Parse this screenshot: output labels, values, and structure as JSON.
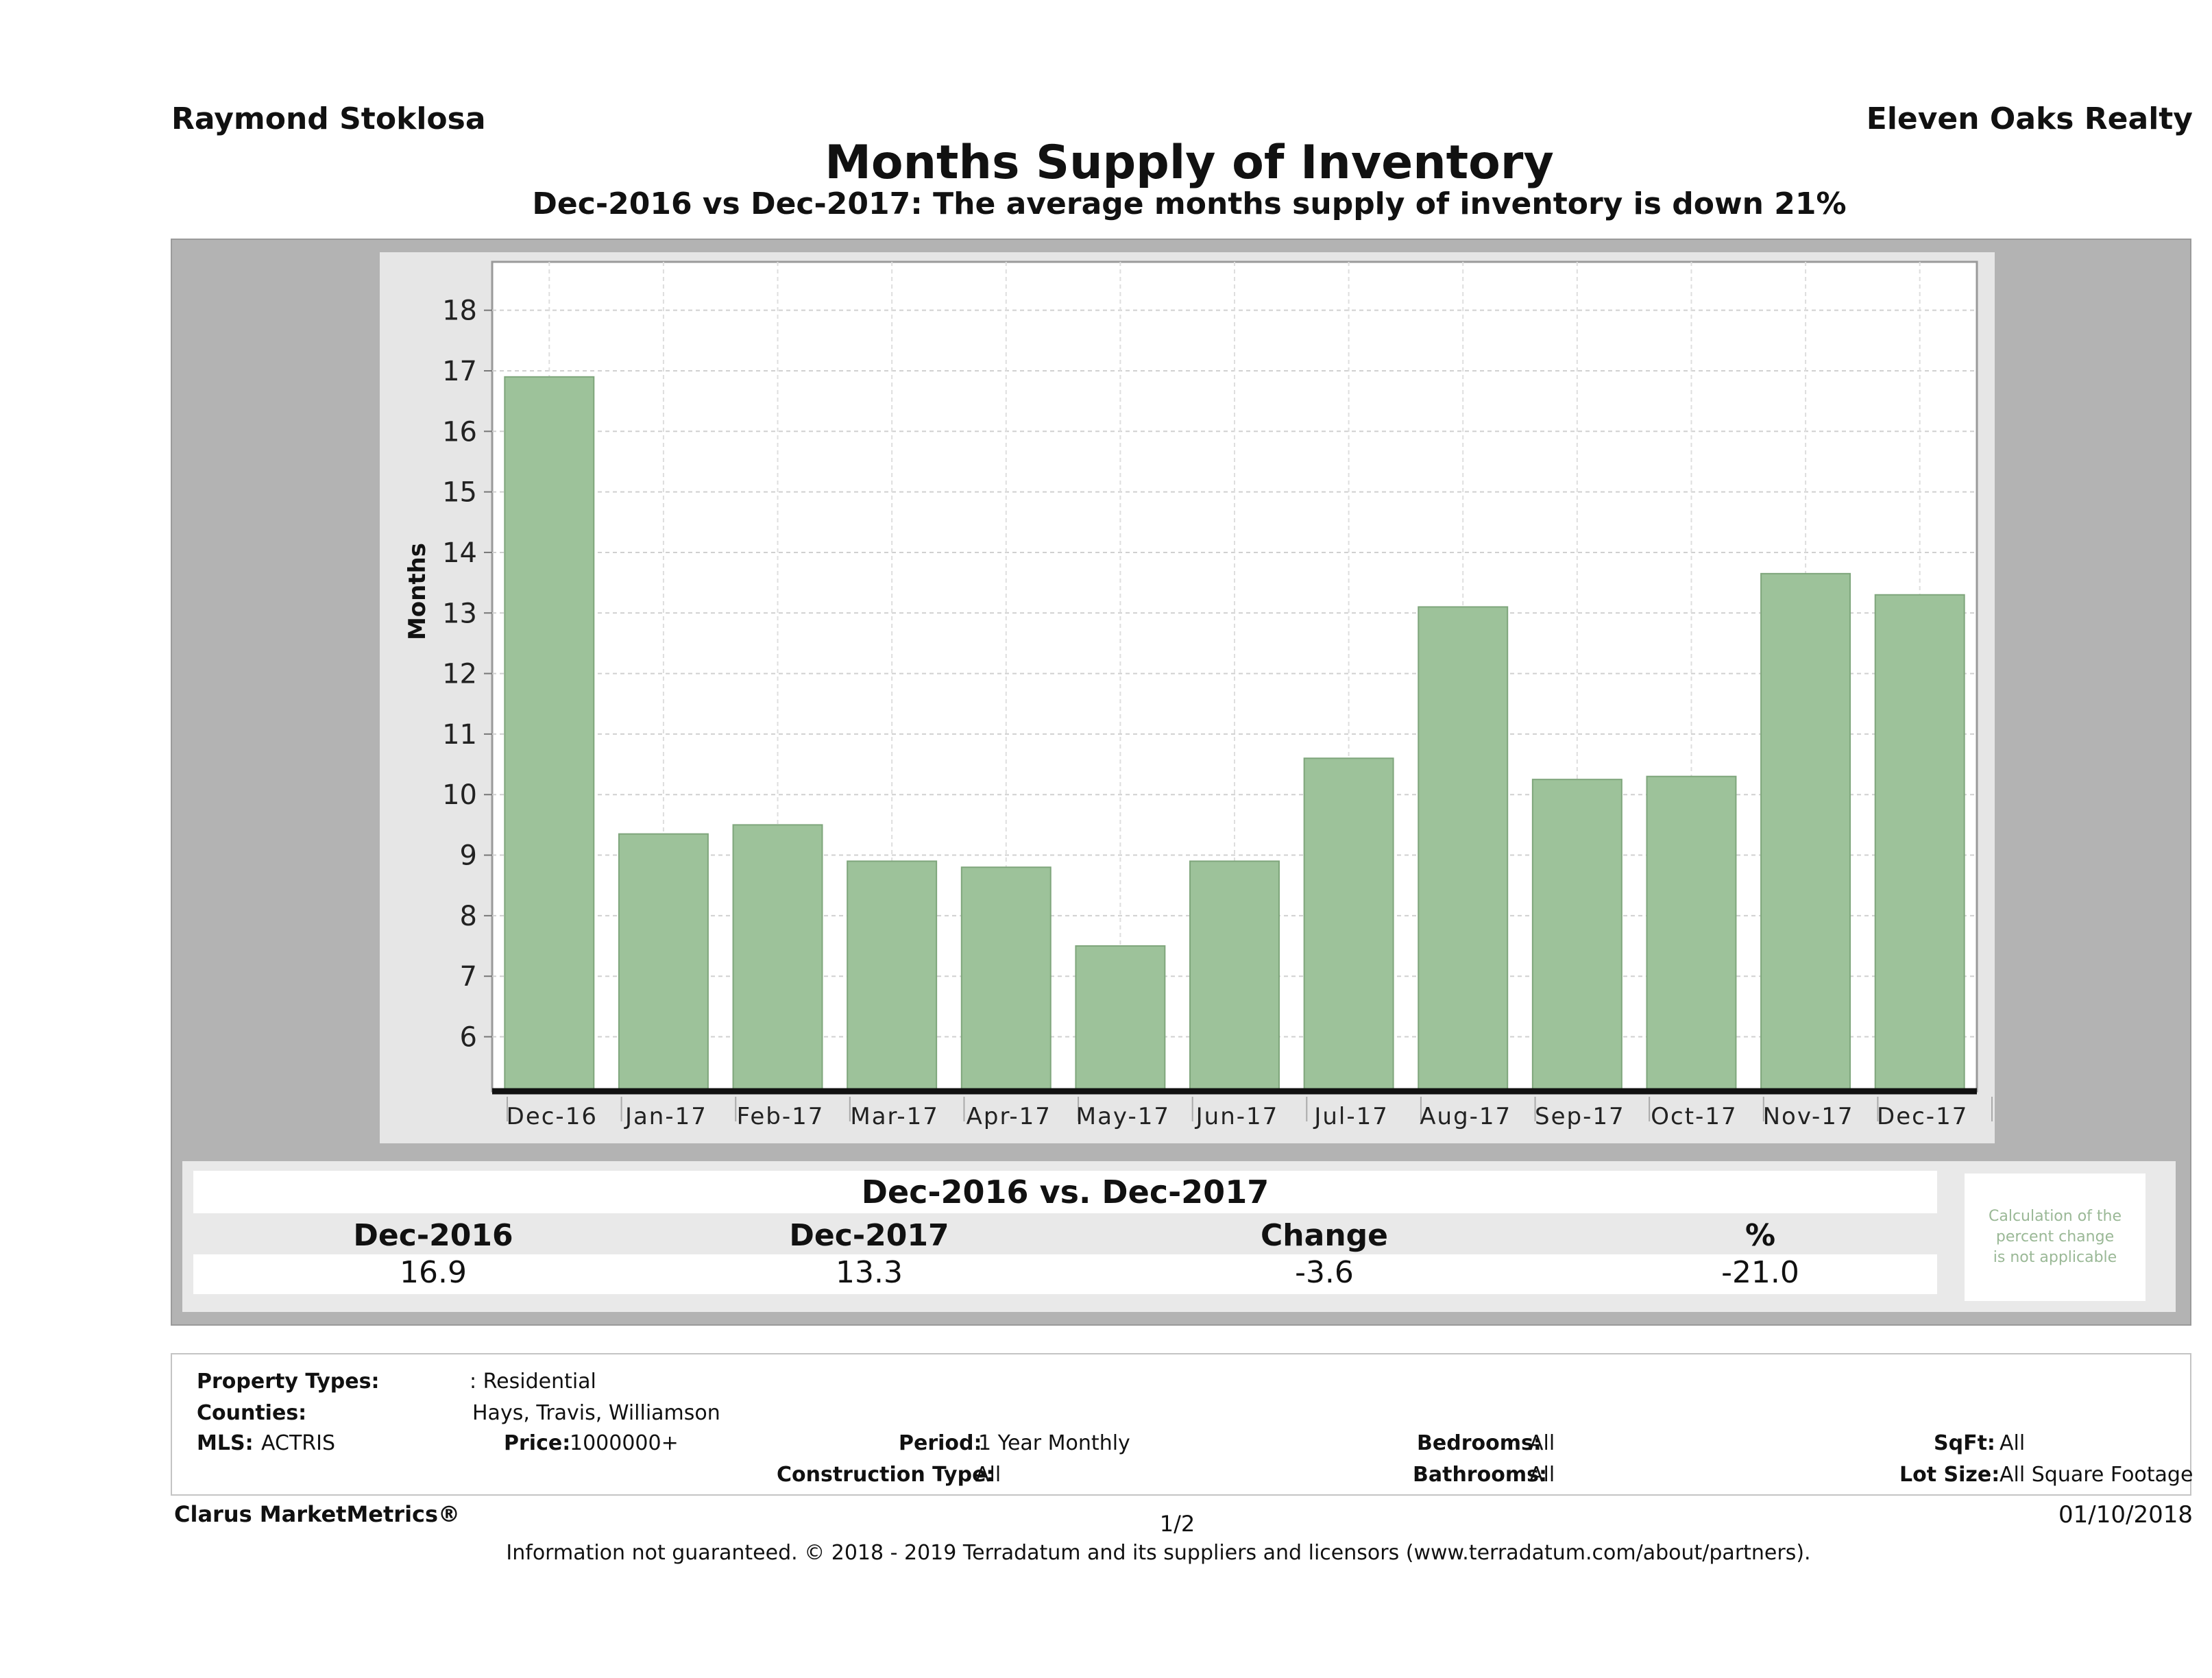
{
  "header": {
    "agent": "Raymond Stoklosa",
    "brokerage": "Eleven Oaks Realty",
    "title": "Months Supply of Inventory",
    "subtitle": "Dec-2016 vs Dec-2017: The average months supply of inventory is down 21%"
  },
  "chart_data": {
    "type": "bar",
    "categories": [
      "Dec-16",
      "Jan-17",
      "Feb-17",
      "Mar-17",
      "Apr-17",
      "May-17",
      "Jun-17",
      "Jul-17",
      "Aug-17",
      "Sep-17",
      "Oct-17",
      "Nov-17",
      "Dec-17"
    ],
    "values": [
      16.9,
      9.35,
      9.5,
      8.9,
      8.8,
      7.5,
      8.9,
      10.6,
      13.1,
      10.25,
      10.3,
      13.65,
      13.3
    ],
    "ylabel": "Months",
    "ylim": [
      5.1,
      18.8
    ],
    "yticks": [
      6,
      7,
      8,
      9,
      10,
      11,
      12,
      13,
      14,
      15,
      16,
      17,
      18
    ],
    "grid": true,
    "bar_color": "#9dc29a"
  },
  "summary": {
    "title": "Dec-2016 vs. Dec-2017",
    "headers": [
      "Dec-2016",
      "Dec-2017",
      "Change",
      "%"
    ],
    "values": [
      "16.9",
      "13.3",
      "-3.6",
      "-21.0"
    ],
    "note": [
      "Calculation of the",
      "percent change",
      "is not applicable"
    ]
  },
  "criteria": {
    "property_types_label": "Property Types:",
    "property_types_value": ": Residential",
    "counties_label": "Counties:",
    "counties_value": "Hays, Travis, Williamson",
    "mls_label": "MLS:",
    "mls_value": "ACTRIS",
    "price_label": "Price:",
    "price_value": "1000000+",
    "period_label": "Period:",
    "period_value": "1 Year Monthly",
    "construction_label": "Construction Type:",
    "construction_value": "All",
    "bedrooms_label": "Bedrooms:",
    "bedrooms_value": "All",
    "bathrooms_label": "Bathrooms:",
    "bathrooms_value": "All",
    "sqft_label": "SqFt:",
    "sqft_value": "All",
    "lotsize_label": "Lot Size:",
    "lotsize_value": "All Square Footage"
  },
  "footer": {
    "brand": "Clarus MarketMetrics®",
    "page": "1/2",
    "date": "01/10/2018",
    "disclaimer": "Information not guaranteed. © 2018 - 2019 Terradatum and its suppliers and licensors (www.terradatum.com/about/partners)."
  }
}
